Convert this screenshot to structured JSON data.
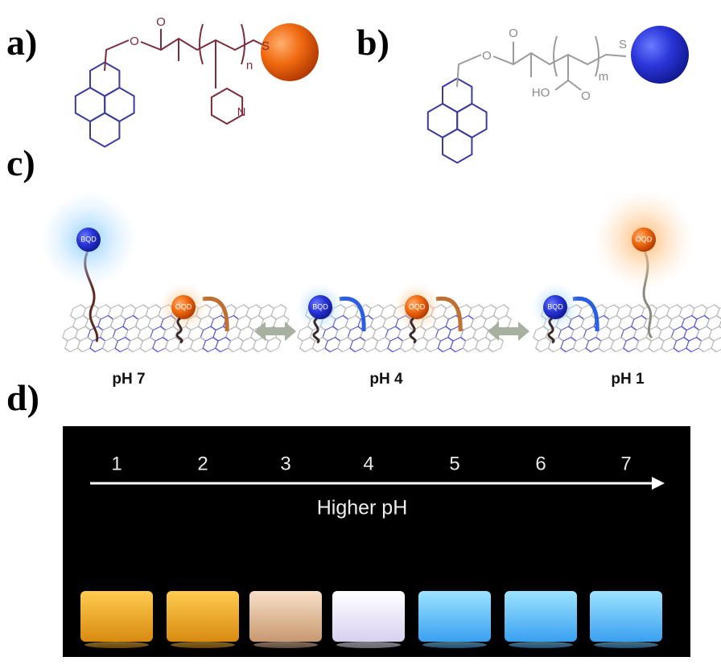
{
  "panels": {
    "a": {
      "label": "a)",
      "atoms": [
        "O",
        "O",
        "n",
        "S",
        "N"
      ]
    },
    "b": {
      "label": "b)",
      "atoms": [
        "O",
        "O",
        "m",
        "S",
        "HO",
        "O"
      ]
    },
    "c": {
      "label": "c)",
      "quantum_dots": [
        "BQD",
        "OQD",
        "BQD",
        "OQD",
        "BQD",
        "OQD"
      ],
      "states": [
        "pH 7",
        "pH 4",
        "pH 1"
      ]
    },
    "d": {
      "label": "d)",
      "vials": [
        "1",
        "2",
        "3",
        "4",
        "5",
        "6",
        "7"
      ],
      "arrow_label": "Higher pH"
    }
  }
}
